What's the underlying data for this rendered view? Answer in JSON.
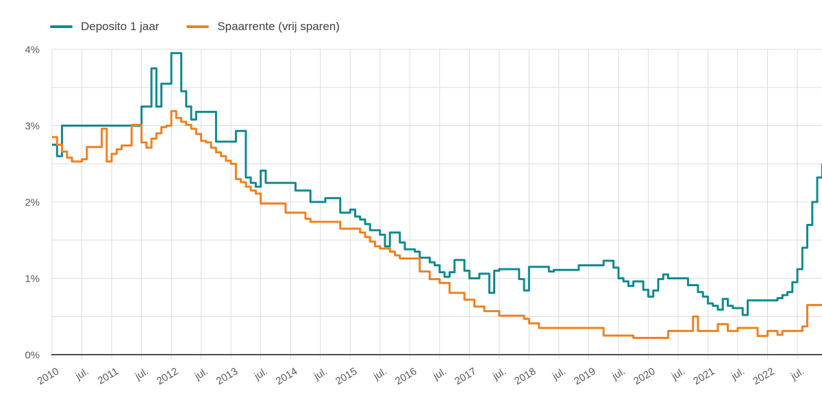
{
  "legend": {
    "items": [
      {
        "label": "Deposito 1 jaar",
        "color": "#0e8a8f"
      },
      {
        "label": "Spaarrente (vrij sparen)",
        "color": "#f0801f"
      }
    ]
  },
  "colors": {
    "grid": "#dcdcdc",
    "axis_line": "#4d4d4d",
    "tick_text": "#595959",
    "legend_text": "#3f3f3f",
    "background": "#ffffff"
  },
  "chart_data": {
    "type": "line",
    "line_style": "step-after",
    "title": "",
    "xlabel": "",
    "ylabel": "",
    "x_unit": "month",
    "x_start": "2010-01",
    "x_end": "2022-12",
    "ylim": [
      0,
      4
    ],
    "grid": {
      "horizontal_step_pct": 0.5,
      "vertical_step_months": 6,
      "visible": true
    },
    "legend_position": "top-left",
    "y_tick_labels": [
      "0%",
      "1%",
      "2%",
      "3%",
      "4%"
    ],
    "x_tick_labels": [
      "2010",
      "jul.",
      "2011",
      "jul.",
      "2012",
      "jul.",
      "2013",
      "jul.",
      "2014",
      "jul.",
      "2015",
      "jul.",
      "2016",
      "jul.",
      "2017",
      "jul.",
      "2018",
      "jul.",
      "2019",
      "jul.",
      "2020",
      "jul.",
      "2021",
      "jul.",
      "2022",
      "jul."
    ],
    "series": [
      {
        "name": "Deposito 1 jaar",
        "color": "#0e8a8f",
        "values": [
          2.75,
          2.6,
          3.0,
          3.0,
          3.0,
          3.0,
          3.0,
          3.0,
          3.0,
          3.0,
          3.0,
          3.0,
          3.0,
          3.0,
          3.0,
          3.0,
          3.0,
          3.0,
          3.25,
          3.25,
          3.75,
          3.25,
          3.55,
          3.55,
          3.95,
          3.95,
          3.45,
          3.25,
          3.08,
          3.18,
          3.18,
          3.18,
          3.18,
          2.79,
          2.79,
          2.79,
          2.79,
          2.93,
          2.93,
          2.32,
          2.25,
          2.2,
          2.41,
          2.25,
          2.25,
          2.25,
          2.25,
          2.25,
          2.25,
          2.15,
          2.15,
          2.15,
          2.0,
          2.0,
          2.0,
          2.05,
          2.05,
          2.05,
          1.86,
          1.86,
          1.9,
          1.81,
          1.77,
          1.71,
          1.63,
          1.63,
          1.57,
          1.42,
          1.6,
          1.6,
          1.47,
          1.38,
          1.38,
          1.35,
          1.27,
          1.27,
          1.21,
          1.17,
          1.08,
          1.02,
          1.08,
          1.24,
          1.24,
          1.1,
          1.0,
          1.0,
          1.06,
          1.06,
          0.81,
          1.1,
          1.12,
          1.12,
          1.12,
          1.12,
          0.99,
          0.84,
          1.15,
          1.15,
          1.15,
          1.15,
          1.09,
          1.11,
          1.11,
          1.11,
          1.11,
          1.11,
          1.17,
          1.17,
          1.17,
          1.17,
          1.17,
          1.23,
          1.23,
          1.14,
          1.0,
          0.96,
          0.9,
          0.96,
          0.96,
          0.85,
          0.76,
          0.84,
          0.99,
          1.05,
          1.0,
          1.0,
          1.0,
          1.0,
          0.91,
          0.91,
          0.82,
          0.76,
          0.67,
          0.64,
          0.59,
          0.73,
          0.64,
          0.61,
          0.61,
          0.52,
          0.71,
          0.71,
          0.71,
          0.71,
          0.71,
          0.71,
          0.74,
          0.78,
          0.82,
          0.95,
          1.12,
          1.4,
          1.7,
          2.0,
          2.32,
          2.5
        ]
      },
      {
        "name": "Spaarrente (vrij sparen)",
        "color": "#f0801f",
        "values": [
          2.85,
          2.75,
          2.66,
          2.58,
          2.53,
          2.53,
          2.56,
          2.72,
          2.72,
          2.72,
          2.96,
          2.53,
          2.63,
          2.69,
          2.74,
          2.74,
          3.01,
          3.01,
          2.78,
          2.71,
          2.83,
          2.9,
          2.98,
          3.0,
          3.19,
          3.1,
          3.05,
          3.01,
          2.96,
          2.89,
          2.8,
          2.78,
          2.71,
          2.65,
          2.6,
          2.54,
          2.5,
          2.3,
          2.26,
          2.2,
          2.15,
          2.11,
          1.98,
          1.98,
          1.98,
          1.98,
          1.98,
          1.86,
          1.86,
          1.86,
          1.86,
          1.78,
          1.74,
          1.74,
          1.74,
          1.74,
          1.74,
          1.74,
          1.65,
          1.65,
          1.65,
          1.65,
          1.6,
          1.54,
          1.48,
          1.42,
          1.39,
          1.39,
          1.35,
          1.3,
          1.26,
          1.26,
          1.26,
          1.26,
          1.09,
          1.09,
          0.99,
          0.99,
          0.94,
          0.94,
          0.81,
          0.81,
          0.81,
          0.72,
          0.72,
          0.63,
          0.63,
          0.57,
          0.57,
          0.57,
          0.51,
          0.51,
          0.51,
          0.51,
          0.51,
          0.47,
          0.41,
          0.41,
          0.35,
          0.35,
          0.35,
          0.35,
          0.35,
          0.35,
          0.35,
          0.35,
          0.35,
          0.35,
          0.35,
          0.35,
          0.35,
          0.25,
          0.25,
          0.25,
          0.25,
          0.25,
          0.25,
          0.22,
          0.22,
          0.22,
          0.22,
          0.22,
          0.22,
          0.22,
          0.31,
          0.31,
          0.31,
          0.31,
          0.31,
          0.5,
          0.31,
          0.31,
          0.31,
          0.31,
          0.4,
          0.4,
          0.31,
          0.31,
          0.35,
          0.35,
          0.35,
          0.35,
          0.245,
          0.245,
          0.31,
          0.31,
          0.26,
          0.31,
          0.31,
          0.31,
          0.31,
          0.37,
          0.65,
          0.65,
          0.65,
          0.65
        ]
      }
    ]
  }
}
